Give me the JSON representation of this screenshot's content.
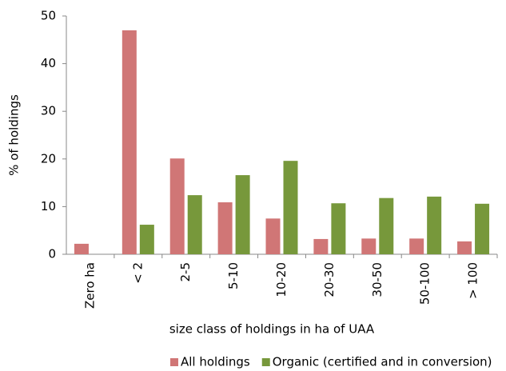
{
  "chart_data": {
    "type": "bar",
    "x_label": "size class of holdings in ha of UAA",
    "y_label": "% of holdings",
    "categories": [
      "Zero ha",
      "< 2",
      "2-5",
      "5-10",
      "10-20",
      "20-30",
      "30-50",
      "50-100",
      "> 100"
    ],
    "series": [
      {
        "name": "All holdings",
        "color": "#d07676",
        "values": [
          2.2,
          47,
          20.1,
          10.9,
          7.5,
          3.2,
          3.3,
          3.3,
          2.7
        ]
      },
      {
        "name": "Organic (certified and in conversion)",
        "color": "#77983b",
        "values": [
          null,
          6.2,
          12.4,
          16.6,
          19.6,
          10.7,
          11.8,
          12.1,
          10.6
        ]
      }
    ],
    "ylim": [
      0,
      50
    ],
    "yticks": [
      0,
      10,
      20,
      30,
      40,
      50
    ],
    "grid": false,
    "legend": "bottom"
  }
}
